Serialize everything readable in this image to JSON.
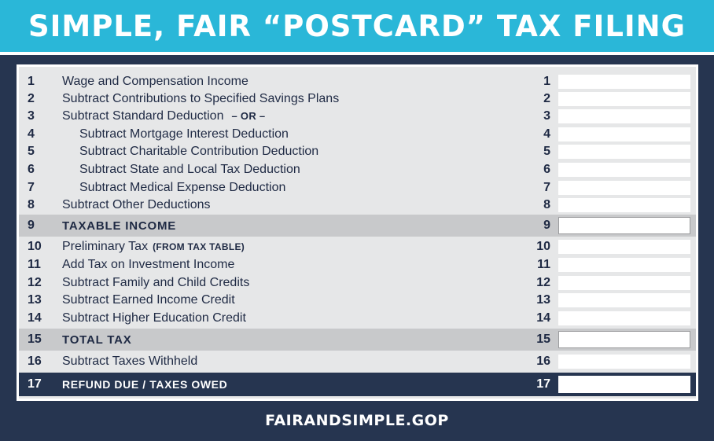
{
  "title": "SIMPLE, FAIR “POSTCARD” TAX FILING",
  "footer": "FAIRANDSIMPLE.GOP",
  "colors": {
    "navy": "#263550",
    "cyan": "#2ab7d8",
    "panel": "#e6e7e8",
    "band": "#c8c9cb"
  },
  "lines": [
    {
      "num": "1",
      "label": "Wage and Compensation Income"
    },
    {
      "num": "2",
      "label": "Subtract Contributions to Specified Savings Plans"
    },
    {
      "num": "3",
      "label": "Subtract Standard Deduction",
      "suffix": "– OR –"
    },
    {
      "num": "4",
      "label": "Subtract Mortgage Interest Deduction"
    },
    {
      "num": "5",
      "label": "Subtract Charitable Contribution Deduction"
    },
    {
      "num": "6",
      "label": "Subtract State and Local Tax Deduction"
    },
    {
      "num": "7",
      "label": "Subtract Medical Expense Deduction"
    },
    {
      "num": "8",
      "label": "Subtract Other Deductions"
    },
    {
      "num": "9",
      "label": "TAXABLE INCOME"
    },
    {
      "num": "10",
      "label": "Preliminary Tax",
      "suffix": "(FROM TAX TABLE)"
    },
    {
      "num": "11",
      "label": "Add Tax on Investment Income"
    },
    {
      "num": "12",
      "label": "Subtract Family and Child Credits"
    },
    {
      "num": "13",
      "label": "Subtract Earned Income Credit"
    },
    {
      "num": "14",
      "label": "Subtract Higher Education Credit"
    },
    {
      "num": "15",
      "label": "TOTAL TAX"
    },
    {
      "num": "16",
      "label": "Subtract Taxes Withheld"
    },
    {
      "num": "17",
      "label": "REFUND DUE / TAXES OWED"
    }
  ]
}
